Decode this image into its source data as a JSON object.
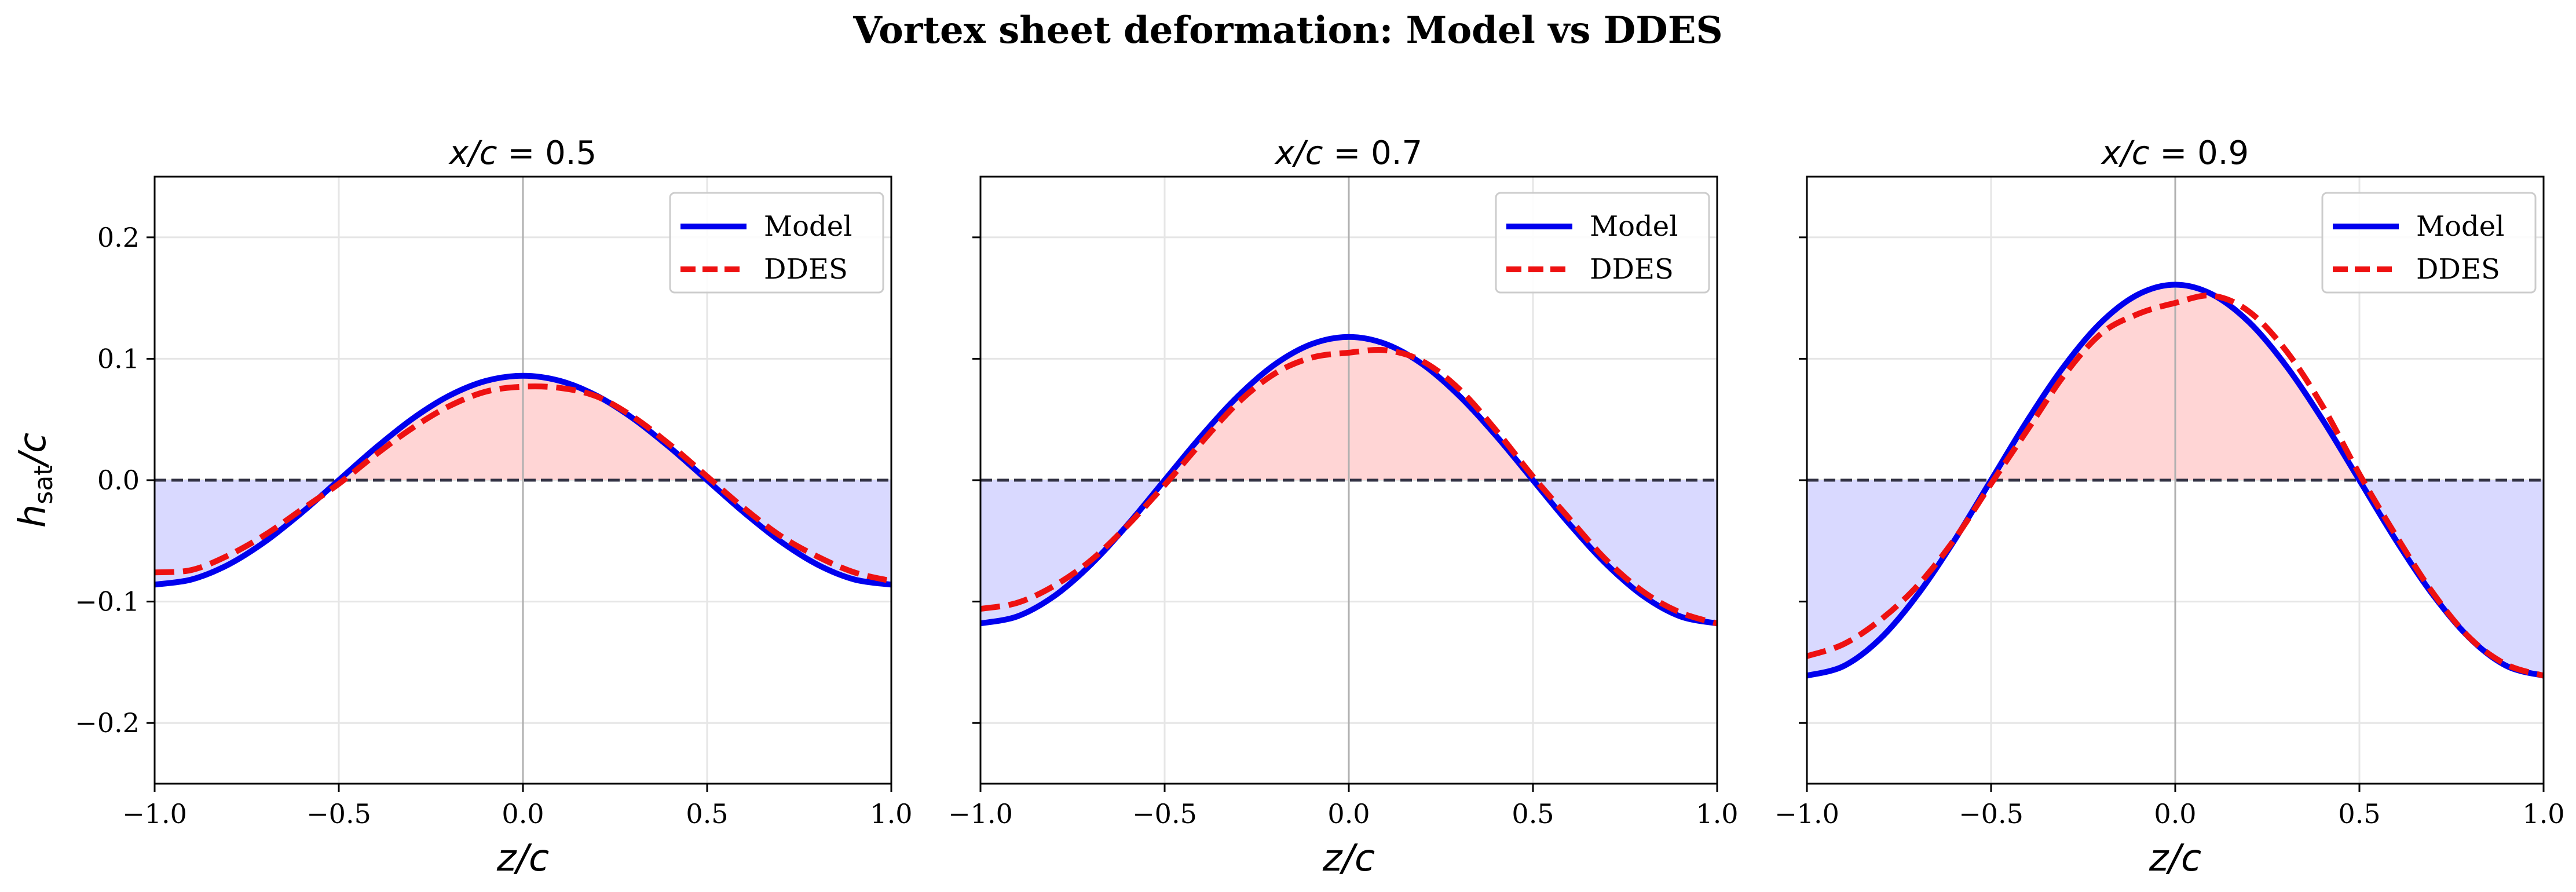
{
  "figure": {
    "suptitle": "Vortex sheet deformation: Model vs DDES"
  },
  "colors": {
    "model": "#0000ee",
    "ddes": "#ee1111",
    "fill_pos": "#ffd5d5",
    "fill_neg": "#d9d9ff",
    "zero_line": "#333344",
    "grid": "#e6e6e6",
    "center_line": "#b0b0b0"
  },
  "chart_data": [
    {
      "type": "line",
      "title_var": "x/c",
      "title_eq": " = 0.5",
      "xlabel": "z/c",
      "ylabel": "h_sat/c",
      "xlim": [
        -1.0,
        1.0
      ],
      "ylim": [
        -0.25,
        0.25
      ],
      "xticks": [
        -1.0,
        -0.5,
        0.0,
        0.5,
        1.0
      ],
      "xtick_labels": [
        "−1.0",
        "−0.5",
        "0.0",
        "0.5",
        "1.0"
      ],
      "yticks": [
        -0.2,
        -0.1,
        0.0,
        0.1,
        0.2
      ],
      "ytick_labels": [
        "−0.2",
        "−0.1",
        "0.0",
        "0.1",
        "0.2"
      ],
      "show_ytick_labels": true,
      "legend": {
        "position": "top-right",
        "entries": [
          "Model",
          "DDES"
        ]
      },
      "grid": true,
      "x": [
        -1.0,
        -0.9,
        -0.8,
        -0.7,
        -0.6,
        -0.5,
        -0.4,
        -0.3,
        -0.2,
        -0.1,
        0.0,
        0.1,
        0.2,
        0.3,
        0.4,
        0.5,
        0.6,
        0.7,
        0.8,
        0.9,
        1.0
      ],
      "series": [
        {
          "name": "Model",
          "style": "solid",
          "values": [
            -0.086,
            -0.0818,
            -0.0696,
            -0.0506,
            -0.0266,
            0.0,
            0.0266,
            0.0506,
            0.0696,
            0.0818,
            0.086,
            0.0818,
            0.0696,
            0.0506,
            0.0266,
            0.0,
            -0.0266,
            -0.0506,
            -0.0696,
            -0.0818,
            -0.086
          ]
        },
        {
          "name": "DDES",
          "style": "dashed",
          "values": [
            -0.076,
            -0.074,
            -0.062,
            -0.045,
            -0.024,
            -0.003,
            0.021,
            0.043,
            0.061,
            0.073,
            0.077,
            0.076,
            0.069,
            0.052,
            0.029,
            0.003,
            -0.023,
            -0.046,
            -0.063,
            -0.076,
            -0.083
          ]
        }
      ]
    },
    {
      "type": "line",
      "title_var": "x/c",
      "title_eq": " = 0.7",
      "xlabel": "z/c",
      "ylabel": "",
      "xlim": [
        -1.0,
        1.0
      ],
      "ylim": [
        -0.25,
        0.25
      ],
      "xticks": [
        -1.0,
        -0.5,
        0.0,
        0.5,
        1.0
      ],
      "xtick_labels": [
        "−1.0",
        "−0.5",
        "0.0",
        "0.5",
        "1.0"
      ],
      "yticks": [
        -0.2,
        -0.1,
        0.0,
        0.1,
        0.2
      ],
      "ytick_labels": [
        "−0.2",
        "−0.1",
        "0.0",
        "0.1",
        "0.2"
      ],
      "show_ytick_labels": false,
      "legend": {
        "position": "top-right",
        "entries": [
          "Model",
          "DDES"
        ]
      },
      "grid": true,
      "x": [
        -1.0,
        -0.9,
        -0.8,
        -0.7,
        -0.6,
        -0.5,
        -0.4,
        -0.3,
        -0.2,
        -0.1,
        0.0,
        0.1,
        0.2,
        0.3,
        0.4,
        0.5,
        0.6,
        0.7,
        0.8,
        0.9,
        1.0
      ],
      "series": [
        {
          "name": "Model",
          "style": "solid",
          "values": [
            -0.118,
            -0.1122,
            -0.0955,
            -0.0694,
            -0.0365,
            0.0,
            0.0365,
            0.0694,
            0.0955,
            0.1122,
            0.118,
            0.1122,
            0.0955,
            0.0694,
            0.0365,
            0.0,
            -0.0365,
            -0.0694,
            -0.0955,
            -0.1122,
            -0.118
          ]
        },
        {
          "name": "DDES",
          "style": "dashed",
          "values": [
            -0.106,
            -0.101,
            -0.087,
            -0.066,
            -0.037,
            -0.004,
            0.031,
            0.064,
            0.088,
            0.101,
            0.105,
            0.107,
            0.098,
            0.075,
            0.041,
            0.003,
            -0.032,
            -0.066,
            -0.092,
            -0.109,
            -0.118
          ]
        }
      ]
    },
    {
      "type": "line",
      "title_var": "x/c",
      "title_eq": " = 0.9",
      "xlabel": "z/c",
      "ylabel": "",
      "xlim": [
        -1.0,
        1.0
      ],
      "ylim": [
        -0.25,
        0.25
      ],
      "xticks": [
        -1.0,
        -0.5,
        0.0,
        0.5,
        1.0
      ],
      "xtick_labels": [
        "−1.0",
        "−0.5",
        "0.0",
        "0.5",
        "1.0"
      ],
      "yticks": [
        -0.2,
        -0.1,
        0.0,
        0.1,
        0.2
      ],
      "ytick_labels": [
        "−0.2",
        "−0.1",
        "0.0",
        "0.1",
        "0.2"
      ],
      "show_ytick_labels": false,
      "legend": {
        "position": "top-right",
        "entries": [
          "Model",
          "DDES"
        ]
      },
      "grid": true,
      "x": [
        -1.0,
        -0.9,
        -0.8,
        -0.7,
        -0.6,
        -0.5,
        -0.4,
        -0.3,
        -0.2,
        -0.1,
        0.0,
        0.1,
        0.2,
        0.3,
        0.4,
        0.5,
        0.6,
        0.7,
        0.8,
        0.9,
        1.0
      ],
      "series": [
        {
          "name": "Model",
          "style": "solid",
          "values": [
            -0.161,
            -0.1531,
            -0.1303,
            -0.0946,
            -0.0498,
            0.0,
            0.0498,
            0.0946,
            0.1303,
            0.1531,
            0.161,
            0.1531,
            0.1303,
            0.0946,
            0.0498,
            0.0,
            -0.0498,
            -0.0946,
            -0.1303,
            -0.1531,
            -0.161
          ]
        },
        {
          "name": "DDES",
          "style": "dashed",
          "values": [
            -0.145,
            -0.135,
            -0.115,
            -0.087,
            -0.049,
            -0.003,
            0.042,
            0.087,
            0.121,
            0.137,
            0.146,
            0.152,
            0.139,
            0.107,
            0.061,
            0.005,
            -0.046,
            -0.093,
            -0.13,
            -0.152,
            -0.161
          ]
        }
      ]
    }
  ]
}
